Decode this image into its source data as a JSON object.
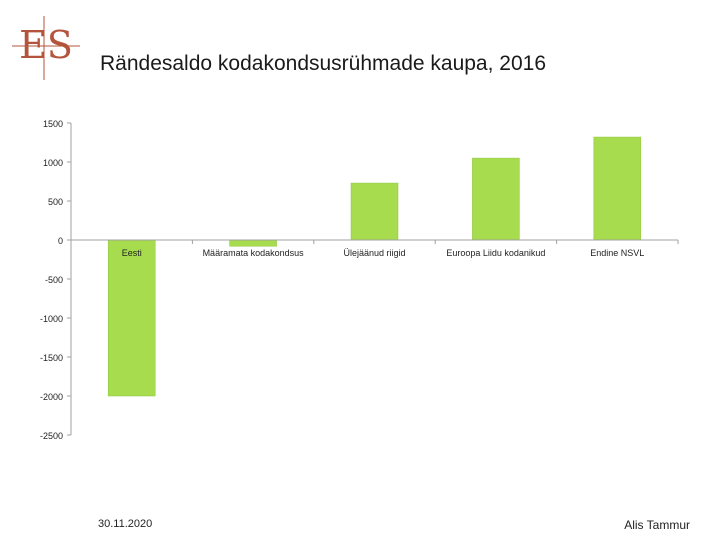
{
  "title": "Rändesaldo kodakondsusrühmade kaupa, 2016",
  "footer": {
    "date": "30.11.2020",
    "author": "Alis Tammur"
  },
  "colors": {
    "bar": "#a6dc4e",
    "bar_edge": "#8cc63f",
    "axis": "#a0a0a0",
    "logo": "#b3543b"
  },
  "logo": {
    "text": "ES",
    "icon": "es-logo-icon"
  },
  "chart_data": {
    "type": "bar",
    "title": "Rändesaldo kodakondsusrühmade kaupa, 2016",
    "categories": [
      "Eesti",
      "Määramata kodakondsus",
      "Ülejäänud riigid",
      "Euroopa Liidu kodanikud",
      "Endine NSVL"
    ],
    "values": [
      -2000,
      -80,
      730,
      1050,
      1320
    ],
    "ylim": [
      -2500,
      1500
    ],
    "yticks": [
      1500,
      1000,
      500,
      0,
      -500,
      -1000,
      -1500,
      -2000,
      -2500
    ],
    "xlabel": "",
    "ylabel": "",
    "grid": false,
    "legend": "none"
  }
}
